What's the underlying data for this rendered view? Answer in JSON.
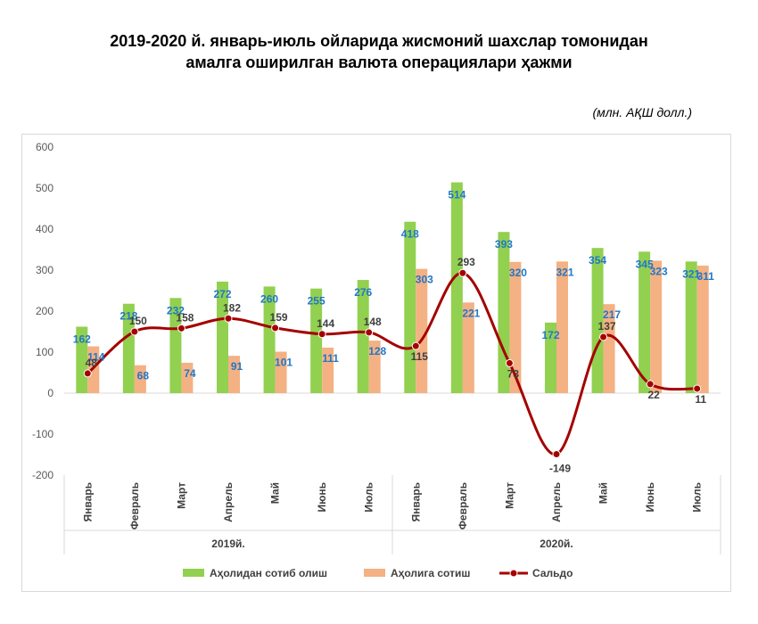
{
  "title_line1": "2019-2020 й. январь-июль ойларида жисмоний шахслар томонидан",
  "title_line2": "амалга оширилган валюта операциялари ҳажми",
  "unit": "(млн. АҚШ долл.)",
  "colors": {
    "buy": "#92d050",
    "sell": "#f4b183",
    "saldo": "#a50000",
    "grid": "#d9d9d9",
    "label": "#1f77c8"
  },
  "chart_data": {
    "type": "bar",
    "title": "2019-2020 й. январь-июль ойларида жисмоний шахслар томонидан амалга оширилган валюта операциялари ҳажми",
    "ylim": [
      -200,
      600
    ],
    "yticks": [
      -200,
      -100,
      0,
      100,
      200,
      300,
      400,
      500,
      600
    ],
    "categories": [
      "Январь",
      "Февраль",
      "Март",
      "Апрель",
      "Май",
      "Июнь",
      "Июль",
      "Январь",
      "Февраль",
      "Март",
      "Апрель",
      "Май",
      "Июнь",
      "Июль"
    ],
    "groups": [
      {
        "label": "2019й.",
        "count": 7
      },
      {
        "label": "2020й.",
        "count": 7
      }
    ],
    "series": [
      {
        "name": "Аҳолидан сотиб олиш",
        "kind": "bar",
        "values": [
          162,
          218,
          232,
          272,
          260,
          255,
          276,
          418,
          514,
          393,
          172,
          354,
          345,
          321
        ]
      },
      {
        "name": "Аҳолига сотиш",
        "kind": "bar",
        "values": [
          114,
          68,
          74,
          91,
          101,
          111,
          128,
          303,
          221,
          320,
          321,
          217,
          323,
          311
        ]
      },
      {
        "name": "Сальдо",
        "kind": "line",
        "values": [
          48,
          150,
          158,
          182,
          159,
          144,
          148,
          115,
          293,
          73,
          -149,
          137,
          22,
          11
        ]
      }
    ],
    "legend": "bottom",
    "grid": false
  }
}
